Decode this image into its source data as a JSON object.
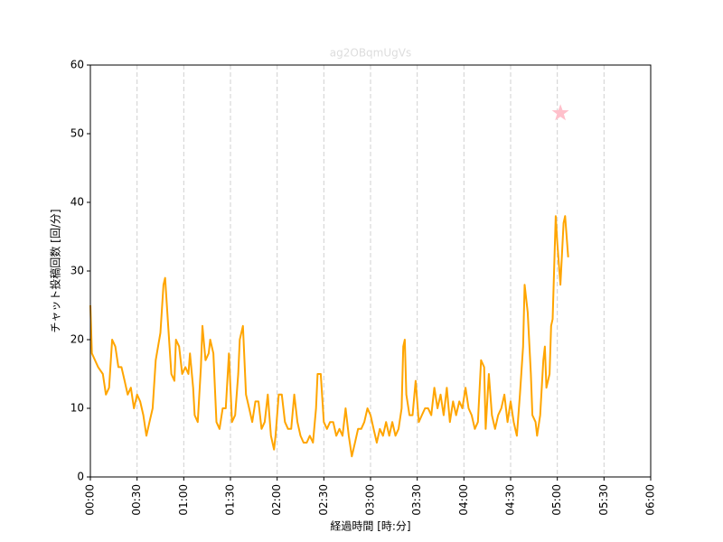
{
  "chart_data": {
    "type": "line",
    "title": "ag2OBqmUgVs",
    "title_color": "#dddddd",
    "xlabel": "経過時間 [時:分]",
    "ylabel": "チャット投稿回数 [回/分]",
    "color": "#ffa500",
    "x": [
      0,
      1,
      5,
      8,
      10,
      12,
      14,
      16,
      18,
      20,
      22,
      24,
      26,
      28,
      30,
      32,
      34,
      36,
      38,
      40,
      42,
      45,
      47,
      48,
      50,
      52,
      54,
      55,
      57,
      59,
      61,
      63,
      64,
      66,
      67,
      69,
      71,
      72,
      74,
      76,
      77,
      79,
      81,
      83,
      85,
      87,
      89,
      91,
      93,
      95,
      96,
      98,
      99,
      100,
      102,
      104,
      106,
      108,
      110,
      112,
      114,
      116,
      118,
      119,
      121,
      123,
      125,
      127,
      129,
      131,
      133,
      135,
      137,
      139,
      141,
      143,
      145,
      146,
      148,
      150,
      152,
      154,
      156,
      158,
      160,
      162,
      164,
      166,
      168,
      170,
      172,
      174,
      176,
      178,
      180,
      182,
      184,
      186,
      188,
      190,
      192,
      194,
      196,
      198,
      200,
      201,
      202,
      203,
      205,
      207,
      209,
      211,
      213,
      215,
      217,
      219,
      221,
      223,
      225,
      227,
      229,
      231,
      233,
      235,
      237,
      239,
      241,
      243,
      245,
      247,
      249,
      251,
      253,
      254,
      256,
      258,
      260,
      262,
      264,
      266,
      268,
      270,
      272,
      274,
      276,
      278,
      279,
      281,
      283,
      284,
      286,
      287,
      289,
      291,
      292,
      293,
      295,
      296,
      297,
      299,
      300,
      302,
      304,
      305,
      307
    ],
    "values": [
      25,
      18,
      16,
      15,
      12,
      13,
      20,
      19,
      16,
      16,
      14,
      12,
      13,
      10,
      12,
      11,
      9,
      6,
      8,
      10,
      17,
      21,
      28,
      29,
      22,
      15,
      14,
      20,
      19,
      15,
      16,
      15,
      18,
      13,
      9,
      8,
      16,
      22,
      17,
      18,
      20,
      18,
      8,
      7,
      10,
      10,
      18,
      8,
      9,
      15,
      20,
      22,
      17,
      12,
      10,
      8,
      11,
      11,
      7,
      8,
      12,
      6,
      4,
      6,
      12,
      12,
      8,
      7,
      7,
      12,
      8,
      6,
      5,
      5,
      6,
      5,
      10,
      15,
      15,
      8,
      7,
      8,
      8,
      6,
      7,
      6,
      10,
      6,
      3,
      5,
      7,
      7,
      8,
      10,
      9,
      7,
      5,
      7,
      6,
      8,
      6,
      8,
      6,
      7,
      10,
      19,
      20,
      12,
      9,
      9,
      14,
      8,
      9,
      10,
      10,
      9,
      13,
      10,
      12,
      9,
      13,
      8,
      11,
      9,
      11,
      10,
      13,
      10,
      9,
      7,
      8,
      17,
      16,
      7,
      15,
      9,
      7,
      9,
      10,
      12,
      8,
      11,
      8,
      6,
      12,
      19,
      28,
      24,
      15,
      9,
      8,
      6,
      9,
      17,
      19,
      13,
      15,
      22,
      23,
      38,
      34,
      28,
      37,
      38,
      32
    ],
    "highlight": {
      "x": 302,
      "y": 53,
      "color": "#ffc0cb",
      "marker": "star"
    },
    "xlim": [
      0,
      360
    ],
    "ylim": [
      0,
      60
    ],
    "xticks": [
      {
        "value": 0,
        "label": "00:00"
      },
      {
        "value": 30,
        "label": "00:30"
      },
      {
        "value": 60,
        "label": "01:00"
      },
      {
        "value": 90,
        "label": "01:30"
      },
      {
        "value": 120,
        "label": "02:00"
      },
      {
        "value": 150,
        "label": "02:30"
      },
      {
        "value": 180,
        "label": "03:00"
      },
      {
        "value": 210,
        "label": "03:30"
      },
      {
        "value": 240,
        "label": "04:00"
      },
      {
        "value": 270,
        "label": "04:30"
      },
      {
        "value": 300,
        "label": "05:00"
      },
      {
        "value": 330,
        "label": "05:30"
      },
      {
        "value": 360,
        "label": "06:00"
      }
    ],
    "yticks": [
      0,
      10,
      20,
      30,
      40,
      50,
      60
    ],
    "xgrid": true
  }
}
